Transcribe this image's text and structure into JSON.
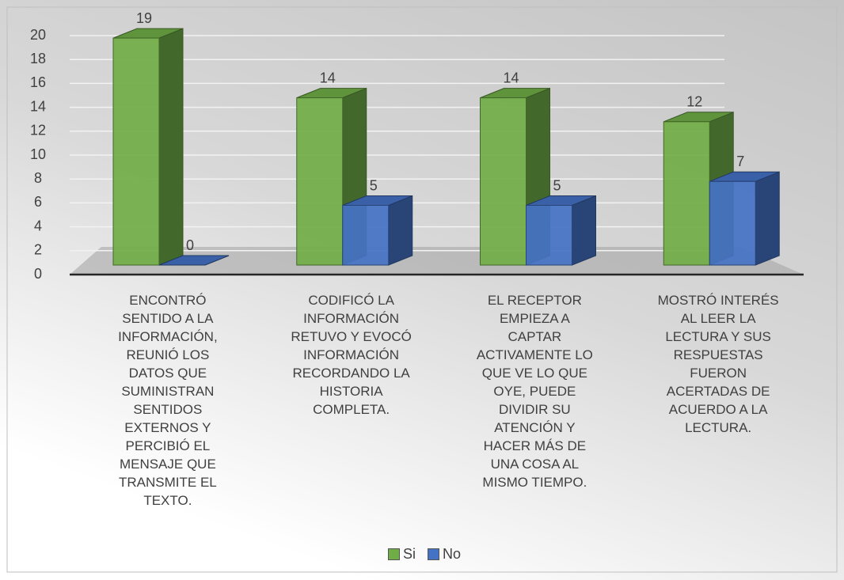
{
  "chart_data": {
    "type": "bar3d",
    "categories": [
      "ENCONTRÓ SENTIDO A LA INFORMACIÓN, REUNIÓ LOS DATOS QUE SUMINISTRAN SENTIDOS EXTERNOS Y PERCIBIÓ EL MENSAJE QUE TRANSMITE EL TEXTO.",
      "CODIFICÓ LA INFORMACIÓN RETUVO Y EVOCÓ INFORMACIÓN RECORDANDO LA HISTORIA COMPLETA.",
      "EL RECEPTOR EMPIEZA A CAPTAR ACTIVAMENTE LO QUE VE LO QUE OYE, PUEDE DIVIDIR SU ATENCIÓN Y HACER MÁS DE UNA COSA AL MISMO TIEMPO.",
      "MOSTRÓ INTERÉS AL LEER LA LECTURA Y SUS RESPUESTAS FUERON ACERTADAS DE ACUERDO A LA LECTURA."
    ],
    "series": [
      {
        "name": "Si",
        "color": "#70ad47",
        "values": [
          19,
          14,
          14,
          12
        ]
      },
      {
        "name": "No",
        "color": "#4472c4",
        "values": [
          0,
          5,
          5,
          7
        ]
      }
    ],
    "ylim": [
      0,
      20
    ],
    "yticks": [
      0,
      2,
      4,
      6,
      8,
      10,
      12,
      14,
      16,
      18,
      20
    ],
    "grid": true,
    "legend": "bottom"
  }
}
